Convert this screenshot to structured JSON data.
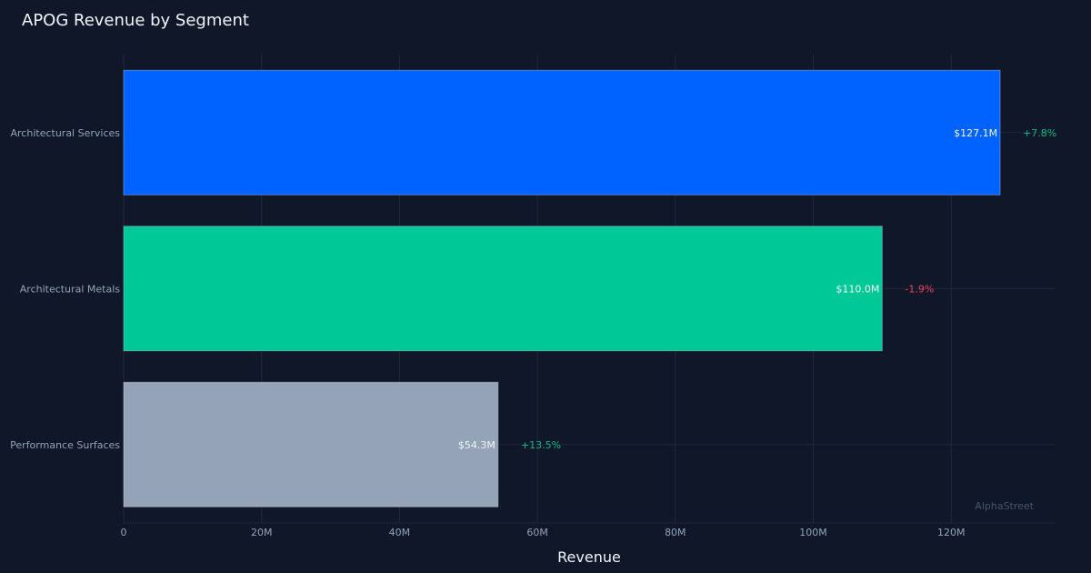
{
  "chart_data": {
    "type": "bar",
    "orientation": "horizontal",
    "title": "APOG Revenue by Segment",
    "xlabel": "Revenue",
    "ylabel": "",
    "xlim": [
      0,
      135
    ],
    "x_ticks": [
      0,
      20,
      40,
      60,
      80,
      100,
      120
    ],
    "x_tick_labels": [
      "0",
      "20M",
      "40M",
      "60M",
      "80M",
      "100M",
      "120M"
    ],
    "grid": true,
    "categories": [
      "Architectural Services",
      "Architectural Metals",
      "Performance Surfaces"
    ],
    "values": [
      127.1,
      110.0,
      54.3
    ],
    "value_labels": [
      "$127.1M",
      "$110.0M",
      "$54.3M"
    ],
    "changes": [
      "+7.8%",
      "-1.9%",
      "+13.5%"
    ],
    "bar_colors": [
      "#0062ff",
      "#00c896",
      "#94a3b8"
    ],
    "change_colors": [
      "#10b981",
      "#f43f5e",
      "#10b981"
    ]
  },
  "watermark": "AlphaStreet",
  "colors": {
    "background": "#0f1729",
    "grid": "#1e293b",
    "text": "#f1f5f9",
    "muted": "#94a3b8"
  }
}
